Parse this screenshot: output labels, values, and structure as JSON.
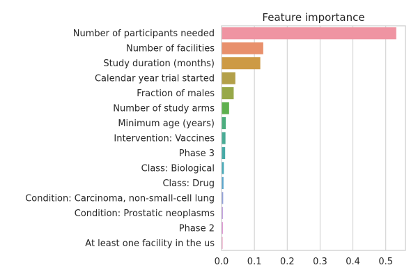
{
  "chart_data": {
    "type": "bar",
    "orientation": "horizontal",
    "title": "Feature importance",
    "xlabel": "",
    "ylabel": "",
    "xlim": [
      0,
      0.56
    ],
    "grid": "vertical",
    "xticks": [
      "0.0",
      "0.1",
      "0.2",
      "0.3",
      "0.4",
      "0.5"
    ],
    "categories": [
      "Number of participants needed",
      "Number of facilities",
      "Study duration (months)",
      "Calendar year trial started",
      "Fraction of males",
      "Number of study arms",
      "Minimum age (years)",
      "Intervention: Vaccines",
      "Phase 3",
      "Class: Biological",
      "Class: Drug",
      "Condition: Carcinoma, non-small-cell lung",
      "Condition: Prostatic neoplasms",
      "Phase 2",
      "At least one facility in the us"
    ],
    "values": [
      0.532,
      0.127,
      0.118,
      0.042,
      0.037,
      0.023,
      0.013,
      0.012,
      0.011,
      0.007,
      0.006,
      0.005,
      0.004,
      0.004,
      0.003
    ],
    "colors": [
      "#ef94a2",
      "#e8906c",
      "#cd9a45",
      "#b3a04a",
      "#97a849",
      "#5fb04f",
      "#4cad7e",
      "#4aab95",
      "#47aaa6",
      "#4aa9b7",
      "#5aa5cc",
      "#93a1d8",
      "#bc98dc",
      "#dd8fd1",
      "#ea8fba"
    ]
  }
}
